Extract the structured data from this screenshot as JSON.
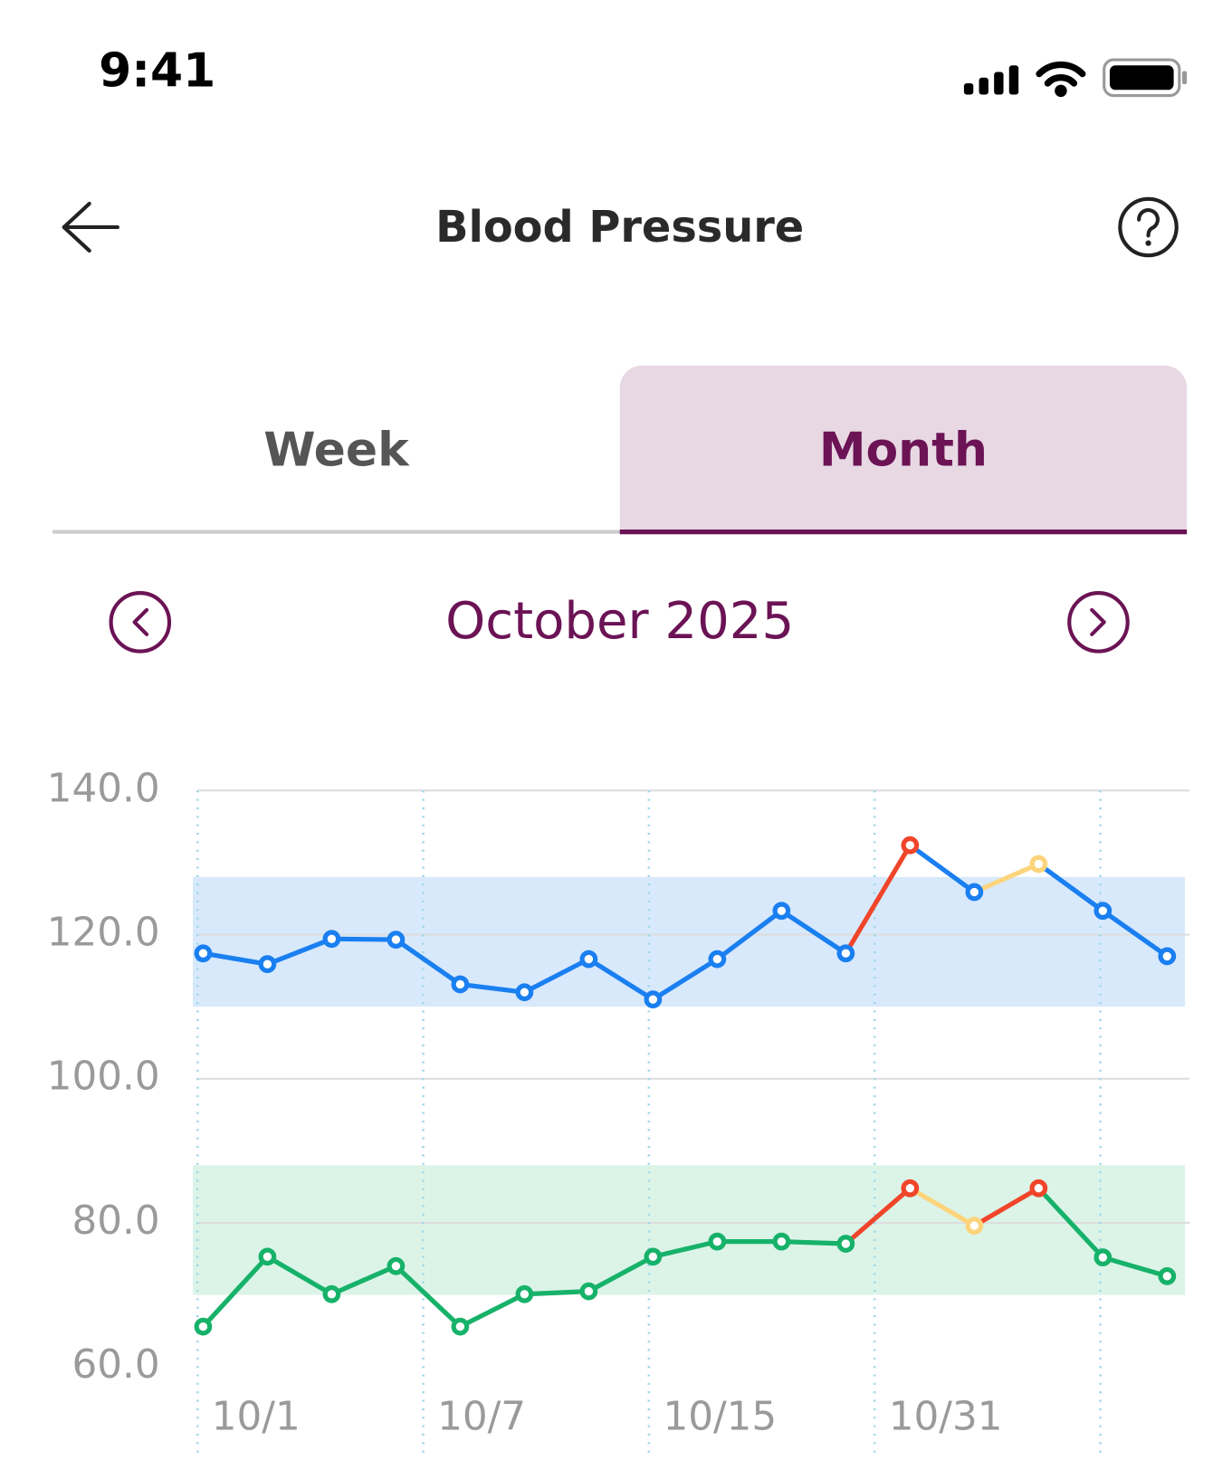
{
  "status_bar": {
    "time": "9:41"
  },
  "header": {
    "title": "Blood Pressure"
  },
  "tabs": [
    "Week",
    "Month"
  ],
  "selected_tab": 1,
  "period": {
    "label": "October 2025"
  },
  "chart_data": {
    "type": "line",
    "ylim": [
      60,
      140
    ],
    "yticks": [
      {
        "value": 60,
        "label": "60.0"
      },
      {
        "value": 80,
        "label": "80.0"
      },
      {
        "value": 100,
        "label": "100.0"
      },
      {
        "value": 120,
        "label": "120.0"
      },
      {
        "value": 140,
        "label": "140.0"
      }
    ],
    "grid": true,
    "x_labels": [
      "10/1",
      "10/7",
      "10/15",
      "10/31",
      null
    ],
    "bands": [
      {
        "range": [
          110,
          128
        ],
        "color": "#d8e9fc"
      },
      {
        "range": [
          70,
          88
        ],
        "color": "#dcf4e8"
      }
    ],
    "series": [
      {
        "color": "#1a7ff0",
        "values": [
          117.4,
          115.9,
          119.4,
          119.3,
          113.1,
          112.0,
          116.6,
          111.0,
          116.6,
          123.3,
          117.4,
          132.4,
          125.9,
          129.8,
          123.3,
          117.0
        ],
        "point_colors": [
          "#1a7ff0",
          "#1a7ff0",
          "#1a7ff0",
          "#1a7ff0",
          "#1a7ff0",
          "#1a7ff0",
          "#1a7ff0",
          "#1a7ff0",
          "#1a7ff0",
          "#1a7ff0",
          "#1a7ff0",
          "#f0452a",
          "#1a7ff0",
          "#fdd47c",
          "#1a7ff0",
          "#1a7ff0"
        ]
      },
      {
        "color": "#17b26a",
        "values": [
          65.6,
          75.3,
          70.1,
          74.0,
          65.6,
          70.1,
          70.5,
          75.3,
          77.4,
          77.4,
          77.1,
          84.8,
          79.6,
          84.8,
          75.2,
          72.6
        ],
        "point_colors": [
          "#17b26a",
          "#17b26a",
          "#17b26a",
          "#17b26a",
          "#17b26a",
          "#17b26a",
          "#17b26a",
          "#17b26a",
          "#17b26a",
          "#17b26a",
          "#17b26a",
          "#f0452a",
          "#fdd47c",
          "#f0452a",
          "#17b26a",
          "#17b26a"
        ]
      }
    ]
  }
}
